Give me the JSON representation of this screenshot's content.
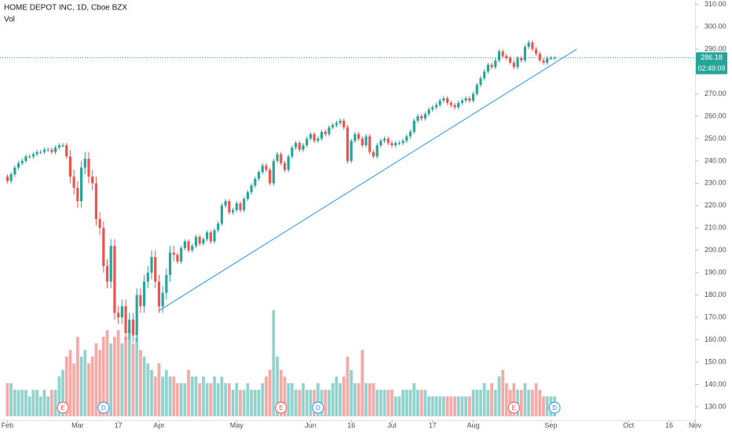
{
  "chart_data": {
    "type": "candlestick",
    "title": "HOME DEPOT INC, 1D, Cboe BZX",
    "volume_label": "Vol",
    "countdown": "02:49:09",
    "up_color": "#26a69a",
    "down_color": "#ef5350",
    "xlim": [
      -2,
      186
    ],
    "xticks": [
      {
        "value": 0,
        "label": "Feb"
      },
      {
        "value": 19,
        "label": "Mar"
      },
      {
        "value": 30,
        "label": "17"
      },
      {
        "value": 41,
        "label": "Apr"
      },
      {
        "value": 62,
        "label": "May"
      },
      {
        "value": 82,
        "label": "Jun"
      },
      {
        "value": 93,
        "label": "16"
      },
      {
        "value": 104,
        "label": "Jul"
      },
      {
        "value": 115,
        "label": "17"
      },
      {
        "value": 126,
        "label": "Aug"
      },
      {
        "value": 147,
        "label": "Sep"
      },
      {
        "value": 168,
        "label": "Oct"
      },
      {
        "value": 179,
        "label": "16"
      },
      {
        "value": 186,
        "label": "Nov"
      }
    ],
    "ylim": [
      124,
      312
    ],
    "yticks": [
      {
        "value": 130,
        "label": "130.00"
      },
      {
        "value": 140,
        "label": "140.00"
      },
      {
        "value": 150,
        "label": "150.00"
      },
      {
        "value": 160,
        "label": "160.00"
      },
      {
        "value": 170,
        "label": "170.00"
      },
      {
        "value": 180,
        "label": "180.00"
      },
      {
        "value": 190,
        "label": "190.00"
      },
      {
        "value": 200,
        "label": "200.00"
      },
      {
        "value": 210,
        "label": "210.00"
      },
      {
        "value": 220,
        "label": "220.00"
      },
      {
        "value": 230,
        "label": "230.00"
      },
      {
        "value": 240,
        "label": "240.00"
      },
      {
        "value": 250,
        "label": "250.00"
      },
      {
        "value": 260,
        "label": "260.00"
      },
      {
        "value": 270,
        "label": "270.00"
      },
      {
        "value": 280,
        "label": "280.00"
      },
      {
        "value": 290,
        "label": "290.00"
      },
      {
        "value": 300,
        "label": "300.00"
      },
      {
        "value": 310,
        "label": "310.00"
      }
    ],
    "open": [
      233,
      231,
      234,
      237,
      239,
      240,
      242,
      242,
      243,
      244,
      244,
      245,
      245,
      244,
      246,
      247,
      247,
      242,
      233,
      228,
      222,
      237,
      241,
      233,
      230,
      214,
      210,
      193,
      186,
      202,
      172,
      170,
      175,
      163,
      169,
      162,
      180,
      175,
      186,
      190,
      197,
      186,
      175,
      181,
      189,
      199,
      198,
      195,
      201,
      204,
      200,
      202,
      206,
      203,
      205,
      208,
      204,
      209,
      212,
      220,
      222,
      217,
      218,
      221,
      218,
      223,
      226,
      229,
      232,
      235,
      238,
      236,
      230,
      240,
      243,
      239,
      236,
      242,
      246,
      248,
      245,
      247,
      250,
      252,
      249,
      250,
      253,
      252,
      255,
      256,
      257,
      258,
      255,
      240,
      249,
      252,
      250,
      247,
      251,
      244,
      242,
      247,
      249,
      250,
      248,
      247,
      248,
      248,
      249,
      251,
      253,
      258,
      260,
      259,
      261,
      263,
      264,
      265,
      267,
      268,
      266,
      265,
      264,
      266,
      267,
      268,
      267,
      270,
      274,
      277,
      280,
      283,
      282,
      285,
      289,
      287,
      286,
      284,
      282,
      286,
      285,
      291,
      293,
      290,
      288,
      285,
      284,
      286,
      286
    ],
    "high": [
      234,
      235,
      238,
      240,
      241,
      243,
      243,
      244,
      245,
      245,
      246,
      246,
      246,
      247,
      248,
      248,
      248,
      245,
      236,
      231,
      240,
      244,
      244,
      236,
      233,
      217,
      213,
      196,
      205,
      205,
      175,
      178,
      178,
      172,
      172,
      183,
      183,
      189,
      193,
      200,
      200,
      189,
      184,
      192,
      202,
      202,
      199,
      202,
      205,
      205,
      203,
      207,
      207,
      206,
      209,
      209,
      210,
      213,
      221,
      223,
      223,
      219,
      222,
      222,
      224,
      227,
      230,
      233,
      236,
      239,
      239,
      237,
      241,
      244,
      244,
      240,
      243,
      247,
      249,
      249,
      248,
      251,
      253,
      253,
      251,
      254,
      254,
      256,
      257,
      258,
      259,
      259,
      256,
      250,
      253,
      253,
      251,
      252,
      252,
      245,
      248,
      250,
      251,
      251,
      249,
      249,
      249,
      250,
      252,
      254,
      259,
      261,
      261,
      262,
      264,
      265,
      266,
      268,
      269,
      269,
      267,
      266,
      267,
      268,
      269,
      269,
      271,
      275,
      278,
      281,
      284,
      284,
      286,
      290,
      290,
      288,
      287,
      285,
      287,
      287,
      292,
      294,
      294,
      291,
      289,
      286,
      287,
      287,
      287
    ],
    "low": [
      230,
      230,
      233,
      236,
      238,
      239,
      241,
      241,
      242,
      243,
      243,
      244,
      243,
      243,
      245,
      246,
      241,
      230,
      225,
      219,
      219,
      234,
      230,
      227,
      211,
      207,
      190,
      183,
      183,
      169,
      167,
      167,
      160,
      160,
      159,
      159,
      172,
      172,
      183,
      187,
      183,
      172,
      172,
      178,
      186,
      195,
      194,
      194,
      200,
      199,
      199,
      201,
      202,
      202,
      204,
      203,
      203,
      208,
      211,
      219,
      216,
      216,
      217,
      217,
      217,
      222,
      225,
      228,
      231,
      234,
      235,
      229,
      229,
      239,
      238,
      235,
      235,
      241,
      245,
      244,
      244,
      246,
      249,
      248,
      248,
      249,
      251,
      251,
      254,
      255,
      256,
      254,
      239,
      239,
      248,
      249,
      246,
      246,
      243,
      241,
      241,
      246,
      248,
      247,
      246,
      246,
      247,
      247,
      248,
      250,
      252,
      257,
      258,
      258,
      260,
      262,
      263,
      264,
      266,
      265,
      264,
      263,
      263,
      265,
      266,
      266,
      266,
      269,
      273,
      276,
      279,
      281,
      281,
      284,
      286,
      285,
      283,
      281,
      281,
      284,
      284,
      290,
      289,
      287,
      284,
      283,
      283,
      285,
      285
    ],
    "close": [
      231,
      234,
      237,
      239,
      240,
      242,
      242,
      243,
      244,
      244,
      245,
      245,
      244,
      246,
      247,
      247,
      242,
      233,
      228,
      222,
      237,
      241,
      233,
      230,
      214,
      210,
      193,
      186,
      202,
      172,
      170,
      175,
      163,
      169,
      162,
      180,
      175,
      186,
      190,
      197,
      186,
      175,
      181,
      189,
      199,
      198,
      195,
      201,
      204,
      200,
      202,
      206,
      203,
      205,
      208,
      204,
      209,
      212,
      220,
      222,
      217,
      218,
      221,
      218,
      223,
      226,
      229,
      232,
      235,
      238,
      236,
      230,
      240,
      243,
      239,
      236,
      242,
      246,
      248,
      245,
      247,
      250,
      252,
      249,
      250,
      253,
      252,
      255,
      256,
      257,
      258,
      255,
      240,
      249,
      252,
      250,
      247,
      251,
      244,
      242,
      247,
      249,
      250,
      248,
      247,
      248,
      248,
      249,
      251,
      253,
      258,
      260,
      259,
      261,
      263,
      264,
      265,
      267,
      268,
      266,
      265,
      264,
      266,
      267,
      268,
      267,
      270,
      274,
      277,
      280,
      283,
      282,
      285,
      289,
      287,
      286,
      284,
      282,
      286,
      285,
      291,
      293,
      290,
      288,
      285,
      284,
      286,
      286,
      286.18
    ],
    "volume": [
      5,
      5,
      4,
      4,
      4,
      4,
      3,
      4,
      4,
      3,
      4,
      3,
      4,
      4,
      6,
      7,
      9,
      10,
      8,
      12,
      9,
      10,
      8,
      9,
      11,
      10,
      12,
      13,
      11,
      12,
      13,
      11,
      12,
      13,
      11,
      12,
      10,
      9,
      8,
      7,
      6,
      8,
      6,
      7,
      6,
      6,
      5,
      5,
      5,
      7,
      6,
      6,
      5,
      6,
      5,
      5,
      6,
      5,
      6,
      5,
      5,
      4,
      5,
      4,
      4,
      5,
      4,
      4,
      4,
      5,
      6,
      7,
      16,
      9,
      7,
      6,
      5,
      5,
      4,
      4,
      5,
      4,
      4,
      4,
      5,
      4,
      4,
      4,
      5,
      6,
      5,
      6,
      9,
      7,
      5,
      5,
      10,
      5,
      5,
      5,
      4,
      4,
      4,
      4,
      4,
      3,
      3,
      4,
      4,
      4,
      5,
      4,
      4,
      4,
      3,
      3,
      3,
      3,
      3,
      3,
      3,
      3,
      3,
      3,
      3,
      3,
      4,
      4,
      4,
      5,
      4,
      5,
      4,
      6,
      7,
      5,
      4,
      5,
      4,
      4,
      5,
      4,
      4,
      5,
      4,
      3,
      3,
      3,
      3
    ],
    "trendline": {
      "x": [
        41,
        154
      ],
      "y": [
        173,
        290
      ],
      "color": "#2196f3"
    },
    "events": [
      {
        "label": "E",
        "x": 15,
        "color": "#ef5350"
      },
      {
        "label": "D",
        "x": 26,
        "color": "#2196f3"
      },
      {
        "label": "E",
        "x": 74,
        "color": "#ef5350"
      },
      {
        "label": "D",
        "x": 84,
        "color": "#2196f3"
      },
      {
        "label": "E",
        "x": 137,
        "color": "#ef5350"
      },
      {
        "label": "D",
        "x": 148,
        "color": "#2196f3"
      }
    ]
  }
}
